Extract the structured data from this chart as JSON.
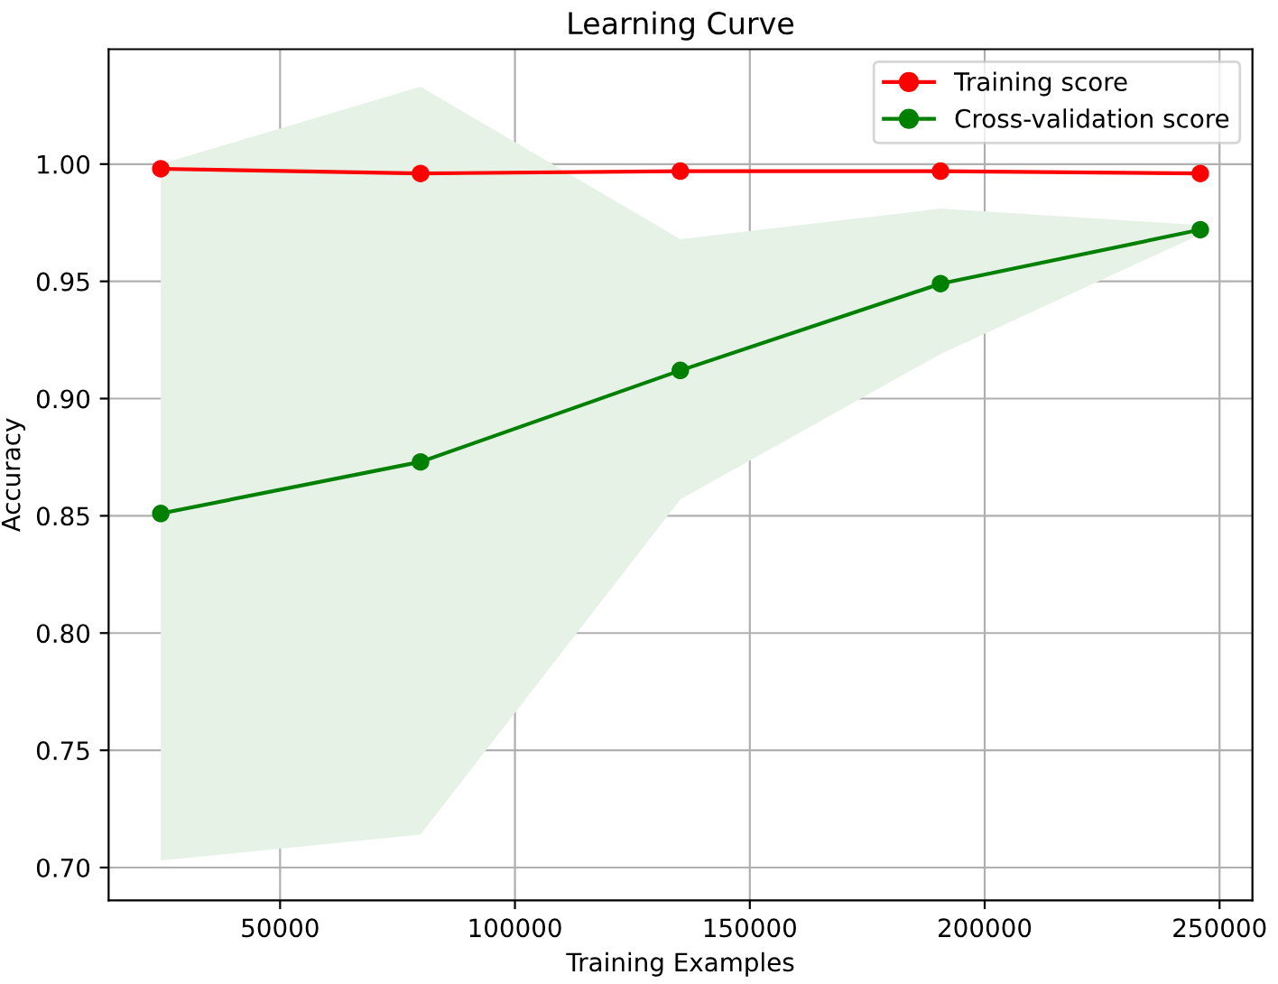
{
  "chart_data": {
    "type": "line",
    "title": "Learning Curve",
    "xlabel": "Training Examples",
    "ylabel": "Accuracy",
    "x": [
      24600,
      79900,
      135200,
      190600,
      245900
    ],
    "series": [
      {
        "name": "Training score",
        "color": "#ff0000",
        "values": [
          0.998,
          0.996,
          0.997,
          0.997,
          0.996
        ]
      },
      {
        "name": "Cross-validation score",
        "color": "#008000",
        "values": [
          0.851,
          0.873,
          0.912,
          0.949,
          0.972
        ],
        "lower": [
          0.703,
          0.714,
          0.857,
          0.919,
          0.97
        ],
        "upper": [
          1.0,
          1.033,
          0.968,
          0.981,
          0.974
        ]
      }
    ],
    "xlim": [
      13500,
      257000
    ],
    "ylim": [
      0.686,
      1.049
    ],
    "xticks": [
      50000,
      100000,
      150000,
      200000,
      250000
    ],
    "yticks": [
      {
        "value": 0.7,
        "label": "0.70"
      },
      {
        "value": 0.75,
        "label": "0.75"
      },
      {
        "value": 0.8,
        "label": "0.80"
      },
      {
        "value": 0.85,
        "label": "0.85"
      },
      {
        "value": 0.9,
        "label": "0.90"
      },
      {
        "value": 0.95,
        "label": "0.95"
      },
      {
        "value": 1.0,
        "label": "1.00"
      }
    ],
    "grid": true,
    "legend": "top right",
    "marker": "circle",
    "line_style": "solid"
  }
}
